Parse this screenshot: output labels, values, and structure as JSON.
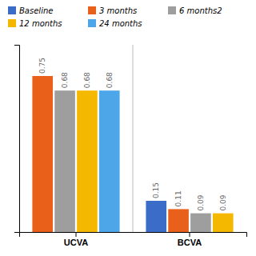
{
  "chart_data": {
    "type": "bar",
    "categories": [
      "UCVA",
      "BCVA"
    ],
    "series": [
      {
        "name": "Baseline",
        "color": "#3A6CC8",
        "values": [
          null,
          0.15
        ]
      },
      {
        "name": "3 months",
        "color": "#E8601A",
        "values": [
          0.75,
          0.11
        ]
      },
      {
        "name": "6 months2",
        "color": "#9E9E9E",
        "values": [
          0.68,
          0.09
        ]
      },
      {
        "name": "12 months",
        "color": "#F5B800",
        "values": [
          0.68,
          0.09
        ]
      },
      {
        "name": "24 months",
        "color": "#4DA6E8",
        "values": [
          0.68,
          null
        ]
      }
    ],
    "ylim": [
      0,
      0.9
    ],
    "yticks": [],
    "grid": false,
    "legend": "top",
    "data_labels": true,
    "tick_labels": "x"
  }
}
